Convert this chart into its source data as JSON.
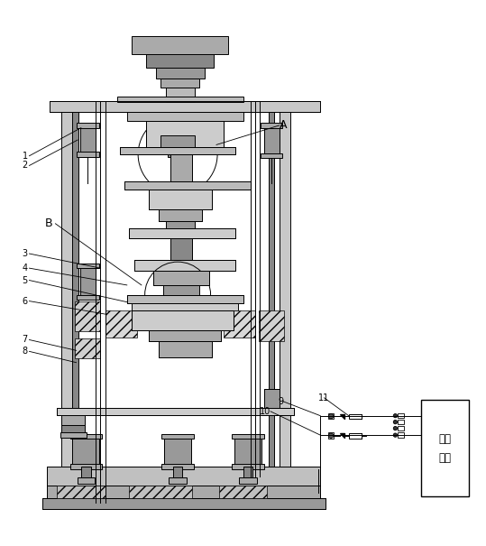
{
  "fig_width": 5.39,
  "fig_height": 6.05,
  "dpi": 100,
  "bg_color": "#ffffff",
  "line_color": "#000000",
  "line_width": 0.7,
  "qiyuan_text": "气源\n接入"
}
